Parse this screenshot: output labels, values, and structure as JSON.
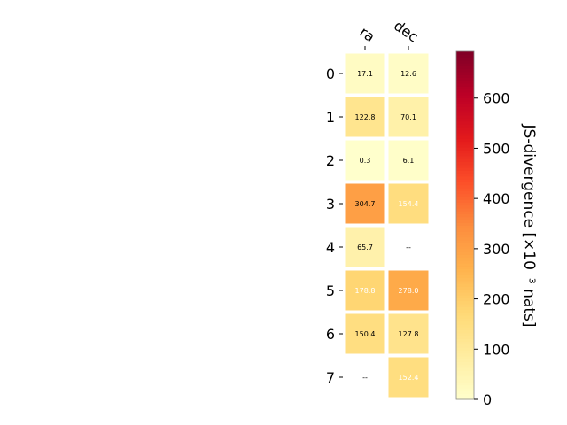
{
  "chart_data": {
    "type": "heatmap",
    "title": "",
    "columns": [
      "ra",
      "dec"
    ],
    "rows": [
      "0",
      "1",
      "2",
      "3",
      "4",
      "5",
      "6",
      "7"
    ],
    "values": [
      [
        17.1,
        12.6
      ],
      [
        122.8,
        70.1
      ],
      [
        0.3,
        6.1
      ],
      [
        304.7,
        154.4
      ],
      [
        65.7,
        null
      ],
      [
        178.8,
        278.0
      ],
      [
        150.4,
        127.8
      ],
      [
        null,
        152.4
      ]
    ],
    "cell_labels": [
      [
        "17.1",
        "12.6"
      ],
      [
        "122.8",
        "70.1"
      ],
      [
        "0.3",
        "6.1"
      ],
      [
        "304.7",
        "154.4"
      ],
      [
        "65.7",
        "--"
      ],
      [
        "178.8",
        "278.0"
      ],
      [
        "150.4",
        "127.8"
      ],
      [
        "--",
        "152.4"
      ]
    ],
    "colorbar": {
      "label": "JS-divergence [×10⁻³ nats]",
      "ticks": [
        0,
        100,
        200,
        300,
        400,
        500,
        600
      ],
      "range": [
        0,
        693
      ],
      "colormap": "YlOrRd"
    },
    "light_text_cells": [
      [
        3,
        1
      ],
      [
        5,
        0
      ],
      [
        5,
        1
      ],
      [
        7,
        1
      ]
    ]
  }
}
